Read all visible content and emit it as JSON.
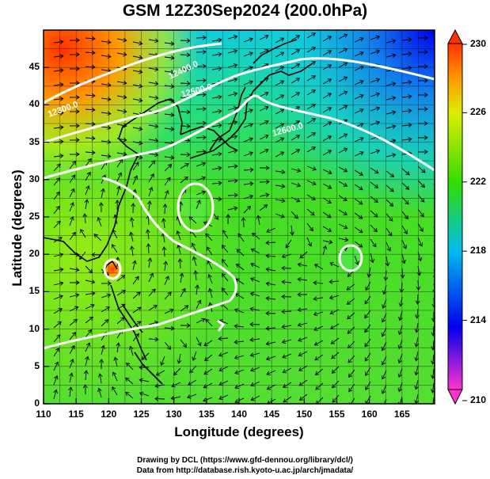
{
  "title": "GSM 12Z30Sep2024 (200.0hPa)",
  "x_axis": {
    "label": "Longitude (degrees)",
    "range": [
      110,
      170
    ],
    "ticks": [
      "110",
      "115",
      "120",
      "125",
      "130",
      "135",
      "140",
      "145",
      "150",
      "155",
      "160",
      "165"
    ]
  },
  "y_axis": {
    "label": "Latitude  (degrees)",
    "range": [
      0,
      50
    ],
    "ticks": [
      "0",
      "5",
      "10",
      "15",
      "20",
      "25",
      "30",
      "35",
      "40",
      "45"
    ]
  },
  "colorbar": {
    "ticks": [
      "210",
      "214",
      "218",
      "222",
      "226",
      "230"
    ],
    "range": [
      210,
      230
    ],
    "colors": [
      "#ff33cc",
      "#0000ee",
      "#00bbee",
      "#33dd00",
      "#ccee00",
      "#ff9900",
      "#ff3300"
    ]
  },
  "contour_labels": [
    "12300.0",
    "12400.0",
    "12500.0",
    "12600.0"
  ],
  "credits": [
    "Drawing by DCL (https://www.gfd-dennou.org/library/dcl/)",
    "Data from http://database.rish.kyoto-u.ac.jp/arch/jmadata/"
  ]
}
